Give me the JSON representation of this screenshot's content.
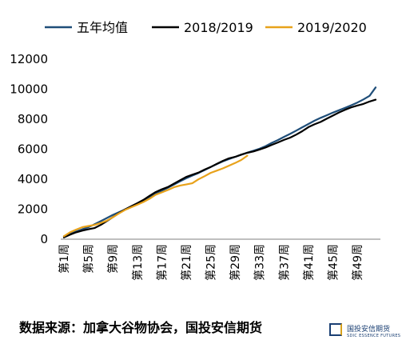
{
  "chart_data": {
    "type": "line",
    "title": "",
    "xlabel": "",
    "ylabel": "",
    "ylim": [
      0,
      12000
    ],
    "yticks": [
      0,
      2000,
      4000,
      6000,
      8000,
      10000,
      12000
    ],
    "week_count": 52,
    "x_tick_labels": [
      {
        "week": 1,
        "label": "第1周"
      },
      {
        "week": 5,
        "label": "第5周"
      },
      {
        "week": 9,
        "label": "第9周"
      },
      {
        "week": 13,
        "label": "第13周"
      },
      {
        "week": 17,
        "label": "第17周"
      },
      {
        "week": 21,
        "label": "第21周"
      },
      {
        "week": 25,
        "label": "第25周"
      },
      {
        "week": 29,
        "label": "第29周"
      },
      {
        "week": 33,
        "label": "第33周"
      },
      {
        "week": 37,
        "label": "第37周"
      },
      {
        "week": 41,
        "label": "第41周"
      },
      {
        "week": 45,
        "label": "第45周"
      },
      {
        "week": 49,
        "label": "第49周"
      }
    ],
    "legend_position": "top",
    "grid": false,
    "series": [
      {
        "name": "五年均值",
        "color": "#1f4e79",
        "values": [
          200,
          360,
          510,
          660,
          800,
          990,
          1200,
          1410,
          1620,
          1800,
          1980,
          2160,
          2340,
          2520,
          2780,
          3020,
          3230,
          3430,
          3640,
          3860,
          4060,
          4240,
          4410,
          4610,
          4810,
          5010,
          5190,
          5340,
          5490,
          5630,
          5770,
          5900,
          6030,
          6210,
          6420,
          6610,
          6820,
          7020,
          7240,
          7460,
          7680,
          7900,
          8090,
          8260,
          8440,
          8600,
          8760,
          8930,
          9110,
          9320,
          9560,
          10120
        ]
      },
      {
        "name": "2018/2019",
        "color": "#000000",
        "values": [
          120,
          300,
          460,
          570,
          660,
          740,
          950,
          1200,
          1470,
          1740,
          1990,
          2200,
          2400,
          2620,
          2890,
          3140,
          3330,
          3480,
          3700,
          3930,
          4150,
          4300,
          4440,
          4640,
          4810,
          5020,
          5220,
          5390,
          5490,
          5640,
          5760,
          5850,
          5980,
          6120,
          6290,
          6450,
          6620,
          6770,
          6970,
          7200,
          7470,
          7660,
          7820,
          8030,
          8240,
          8450,
          8630,
          8790,
          8910,
          9020,
          9180,
          9300
        ]
      },
      {
        "name": "2019/2020",
        "color": "#e8a21b",
        "values": [
          200,
          460,
          640,
          800,
          880,
          950,
          1080,
          1240,
          1460,
          1720,
          1950,
          2130,
          2300,
          2480,
          2700,
          2960,
          3120,
          3280,
          3460,
          3580,
          3650,
          3730,
          3990,
          4200,
          4420,
          4570,
          4720,
          4900,
          5080,
          5280,
          5570
        ]
      }
    ]
  },
  "source": {
    "text": "数据来源：加拿大谷物协会，国投安信期货"
  },
  "logo": {
    "name_cn": "国投安信期货",
    "name_en": "SDIC ESSENCE FUTURES"
  }
}
